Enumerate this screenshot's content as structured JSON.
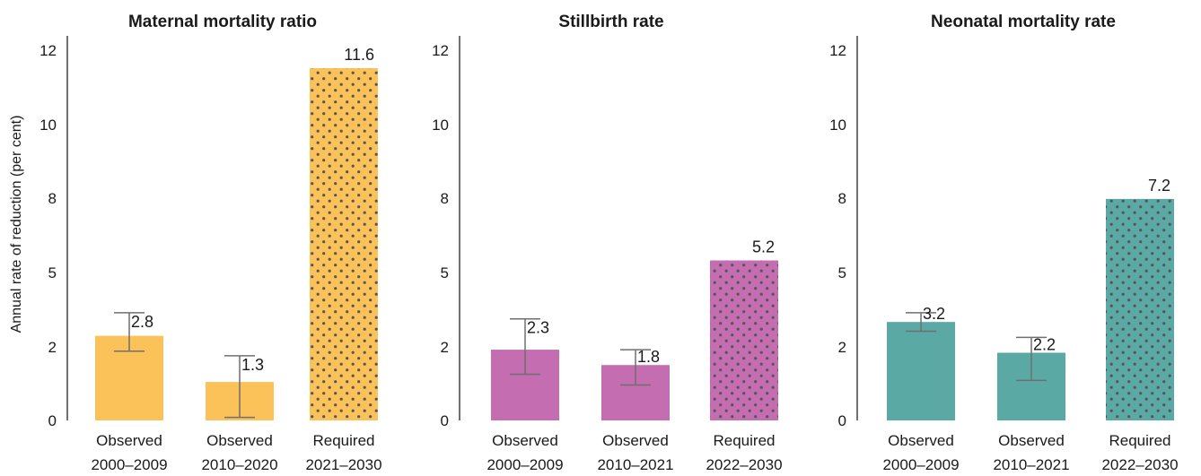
{
  "ylabel": "Annual rate of reduction (per cent)",
  "chart_data": [
    {
      "type": "bar",
      "title": "Maternal mortality ratio",
      "color": "#fcc25a",
      "categories": [
        {
          "line1": "Observed",
          "line2": "2000–2009"
        },
        {
          "line1": "Observed",
          "line2": "2010–2020"
        },
        {
          "line1": "Required",
          "line2": "2021–2030"
        }
      ],
      "values": [
        2.8,
        1.3,
        11.6
      ],
      "labels": [
        "2.8",
        "1.3",
        "11.6"
      ],
      "bar_heights": [
        2.75,
        1.25,
        11.45
      ],
      "error_low": [
        2.25,
        0.1,
        null
      ],
      "error_high": [
        3.5,
        2.1,
        null
      ],
      "patterned": [
        false,
        false,
        true
      ],
      "yticks": [
        "0",
        "2",
        "5",
        "8",
        "10",
        "12"
      ],
      "ylim": [
        0,
        12.5
      ]
    },
    {
      "type": "bar",
      "title": "Stillbirth rate",
      "color": "#c46db0",
      "categories": [
        {
          "line1": "Observed",
          "line2": "2000–2009"
        },
        {
          "line1": "Observed",
          "line2": "2010–2021"
        },
        {
          "line1": "Required",
          "line2": "2022–2030"
        }
      ],
      "values": [
        2.3,
        1.8,
        5.2
      ],
      "labels": [
        "2.3",
        "1.8",
        "5.2"
      ],
      "bar_heights": [
        2.3,
        1.8,
        5.2
      ],
      "error_low": [
        1.5,
        1.15,
        null
      ],
      "error_high": [
        3.3,
        2.3,
        null
      ],
      "patterned": [
        false,
        false,
        true
      ],
      "yticks": [
        "0",
        "2",
        "5",
        "8",
        "10",
        "12"
      ],
      "ylim": [
        0,
        12.5
      ]
    },
    {
      "type": "bar",
      "title": "Neonatal mortality rate",
      "color": "#5ba9a5",
      "categories": [
        {
          "line1": "Observed",
          "line2": "2000–2009"
        },
        {
          "line1": "Observed",
          "line2": "2010–2021"
        },
        {
          "line1": "Required",
          "line2": "2022–2030"
        }
      ],
      "values": [
        3.2,
        2.2,
        7.2
      ],
      "labels": [
        "3.2",
        "2.2",
        "7.2"
      ],
      "bar_heights": [
        3.2,
        2.2,
        7.2
      ],
      "error_low": [
        2.9,
        1.3,
        null
      ],
      "error_high": [
        3.5,
        2.7,
        null
      ],
      "patterned": [
        false,
        false,
        true
      ],
      "yticks": [
        "0",
        "2",
        "5",
        "8",
        "10",
        "12"
      ],
      "ylim": [
        0,
        12.5
      ]
    }
  ]
}
